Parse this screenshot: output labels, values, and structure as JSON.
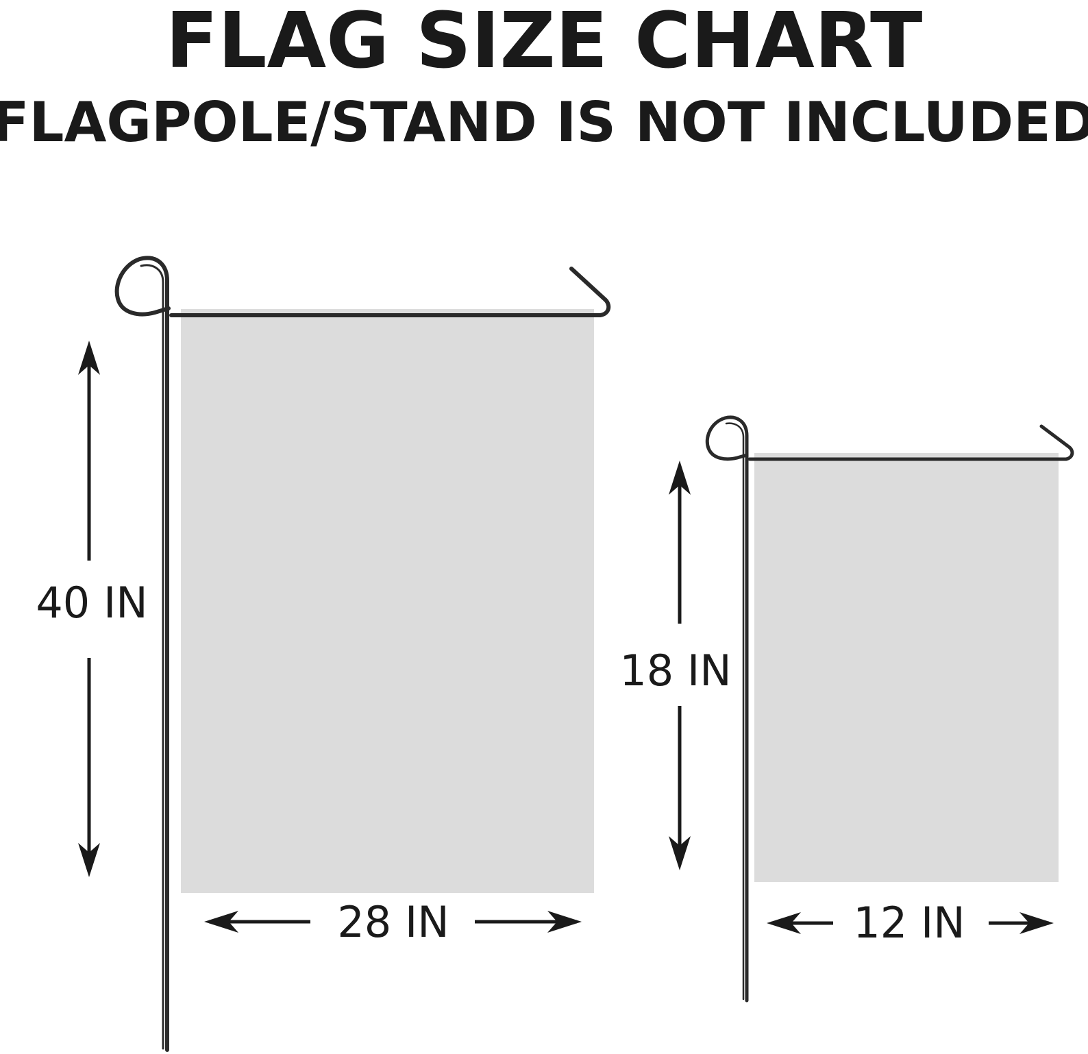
{
  "title": "FLAG SIZE CHART",
  "subtitle": "(FLAGPOLE/STAND IS NOT INCLUDED)",
  "flags": [
    {
      "name": "large-flag",
      "height_label": "40 IN",
      "width_label": "28 IN"
    },
    {
      "name": "small-flag",
      "height_label": "18 IN",
      "width_label": "12 IN"
    }
  ],
  "colors": {
    "flag_fill": "#dcdcdc",
    "pole": "#2a2a2a",
    "text": "#1a1a1a",
    "background": "#ffffff"
  }
}
